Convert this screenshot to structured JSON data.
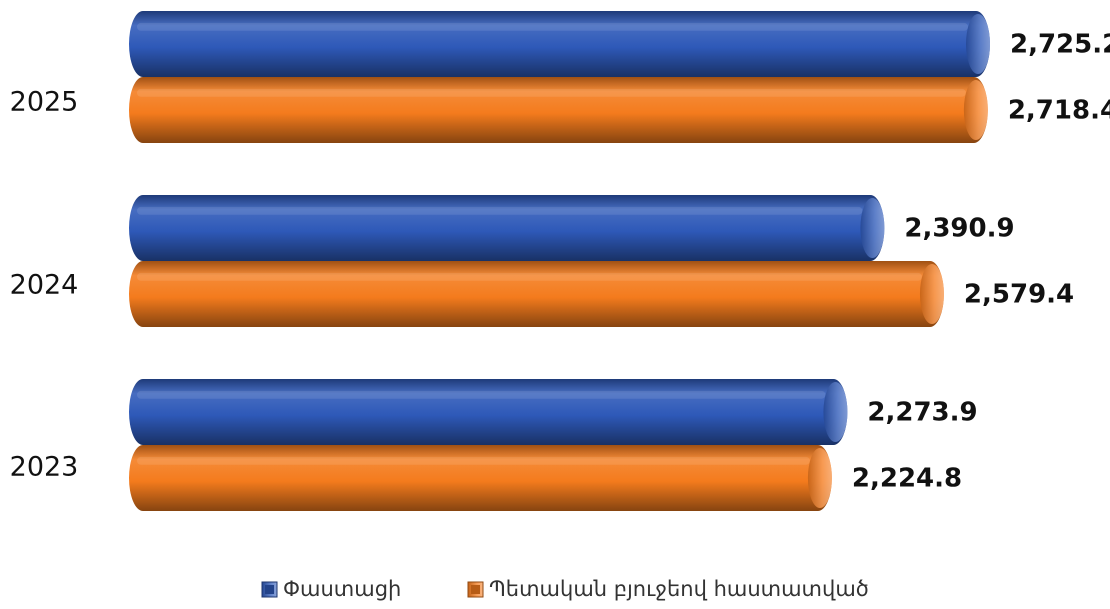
{
  "chart_data": {
    "type": "bar",
    "orientation": "horizontal",
    "categories": [
      "2023",
      "2024",
      "2025"
    ],
    "series": [
      {
        "name": "Փաստացի",
        "values": [
          2273.9,
          2390.9,
          2725.2
        ],
        "labels": [
          "2,273.9",
          "2,390.9",
          "2,725.2"
        ],
        "color": "#2E59B8"
      },
      {
        "name": "Պետական բյուջեով հաստատված",
        "values": [
          2224.8,
          2579.4,
          2718.4
        ],
        "labels": [
          "2,224.8",
          "2,579.4",
          "2,718.4"
        ],
        "color": "#F47B1D"
      }
    ],
    "title": "",
    "xlabel": "",
    "ylabel": "",
    "xlim": [
      0,
      2725.2
    ],
    "grid": false,
    "axes_visible": false,
    "legend_position": "bottom-center",
    "bar_style": "3d-cylinder"
  }
}
